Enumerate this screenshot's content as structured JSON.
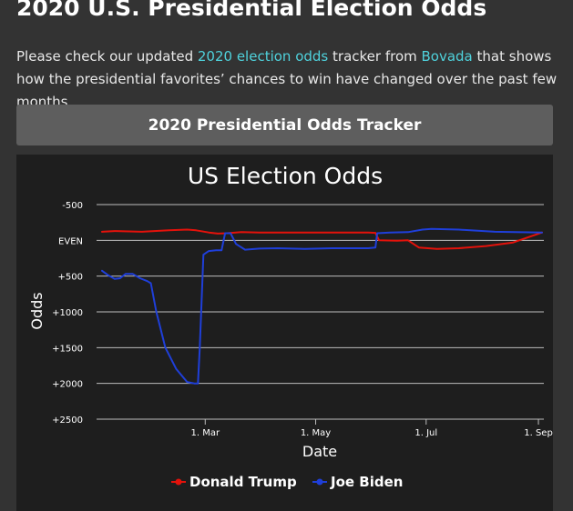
{
  "page": {
    "title": "2020 U.S. Presidential Election Odds",
    "intro": {
      "text_before": "Please check our updated ",
      "link1": "2020 election odds",
      "text_middle": " tracker from ",
      "link2": "Bovada",
      "text_after": " that shows how the presidential favorites’ chances to win have changed over the past few months."
    },
    "tracker_header": "2020 Presidential Odds Tracker"
  },
  "chart_data": {
    "type": "line",
    "title": "US Election Odds",
    "xlabel": "Date",
    "ylabel": "Odds",
    "x_ticks": [
      {
        "label": "1. Mar",
        "day": 60
      },
      {
        "label": "1. May",
        "day": 121
      },
      {
        "label": "1. Jul",
        "day": 182
      },
      {
        "label": "1. Sep",
        "day": 244
      }
    ],
    "y_ticks": [
      {
        "label": "-500",
        "value": -500
      },
      {
        "label": "EVEN",
        "value": 0
      },
      {
        "label": "+500",
        "value": 500
      },
      {
        "label": "+1000",
        "value": 1000
      },
      {
        "label": "+1500",
        "value": 1500
      },
      {
        "label": "+2000",
        "value": 2000
      },
      {
        "label": "+2500",
        "value": 2500
      }
    ],
    "ylim": [
      -500,
      2500
    ],
    "y_inverted": true,
    "grid": true,
    "legend_position": "bottom",
    "series": [
      {
        "name": "Donald Trump",
        "color": "#e3120b",
        "points": [
          [
            3,
            -120
          ],
          [
            10,
            -130
          ],
          [
            25,
            -120
          ],
          [
            40,
            -140
          ],
          [
            50,
            -150
          ],
          [
            55,
            -140
          ],
          [
            62,
            -110
          ],
          [
            67,
            -95
          ],
          [
            72,
            -100
          ],
          [
            80,
            -115
          ],
          [
            90,
            -110
          ],
          [
            100,
            -110
          ],
          [
            115,
            -110
          ],
          [
            130,
            -110
          ],
          [
            140,
            -110
          ],
          [
            150,
            -110
          ],
          [
            154,
            -105
          ],
          [
            156,
            0
          ],
          [
            166,
            5
          ],
          [
            172,
            0
          ],
          [
            178,
            100
          ],
          [
            188,
            120
          ],
          [
            200,
            110
          ],
          [
            215,
            80
          ],
          [
            230,
            30
          ],
          [
            246,
            -110
          ]
        ]
      },
      {
        "name": "Joe Biden",
        "color": "#1f3fd9",
        "points": [
          [
            3,
            425
          ],
          [
            6,
            480
          ],
          [
            10,
            540
          ],
          [
            13,
            530
          ],
          [
            16,
            470
          ],
          [
            20,
            470
          ],
          [
            24,
            530
          ],
          [
            28,
            570
          ],
          [
            30,
            600
          ],
          [
            33,
            1000
          ],
          [
            38,
            1500
          ],
          [
            44,
            1800
          ],
          [
            50,
            1980
          ],
          [
            54,
            2000
          ],
          [
            56,
            2000
          ],
          [
            57,
            1500
          ],
          [
            59,
            200
          ],
          [
            62,
            150
          ],
          [
            66,
            140
          ],
          [
            69,
            140
          ],
          [
            71,
            -100
          ],
          [
            74,
            -100
          ],
          [
            77,
            50
          ],
          [
            82,
            130
          ],
          [
            90,
            115
          ],
          [
            100,
            110
          ],
          [
            115,
            120
          ],
          [
            130,
            110
          ],
          [
            150,
            110
          ],
          [
            154,
            100
          ],
          [
            155,
            -100
          ],
          [
            162,
            -110
          ],
          [
            172,
            -115
          ],
          [
            180,
            -150
          ],
          [
            185,
            -160
          ],
          [
            200,
            -150
          ],
          [
            220,
            -120
          ],
          [
            246,
            -110
          ]
        ]
      }
    ],
    "x_range_days": [
      0,
      247
    ]
  }
}
